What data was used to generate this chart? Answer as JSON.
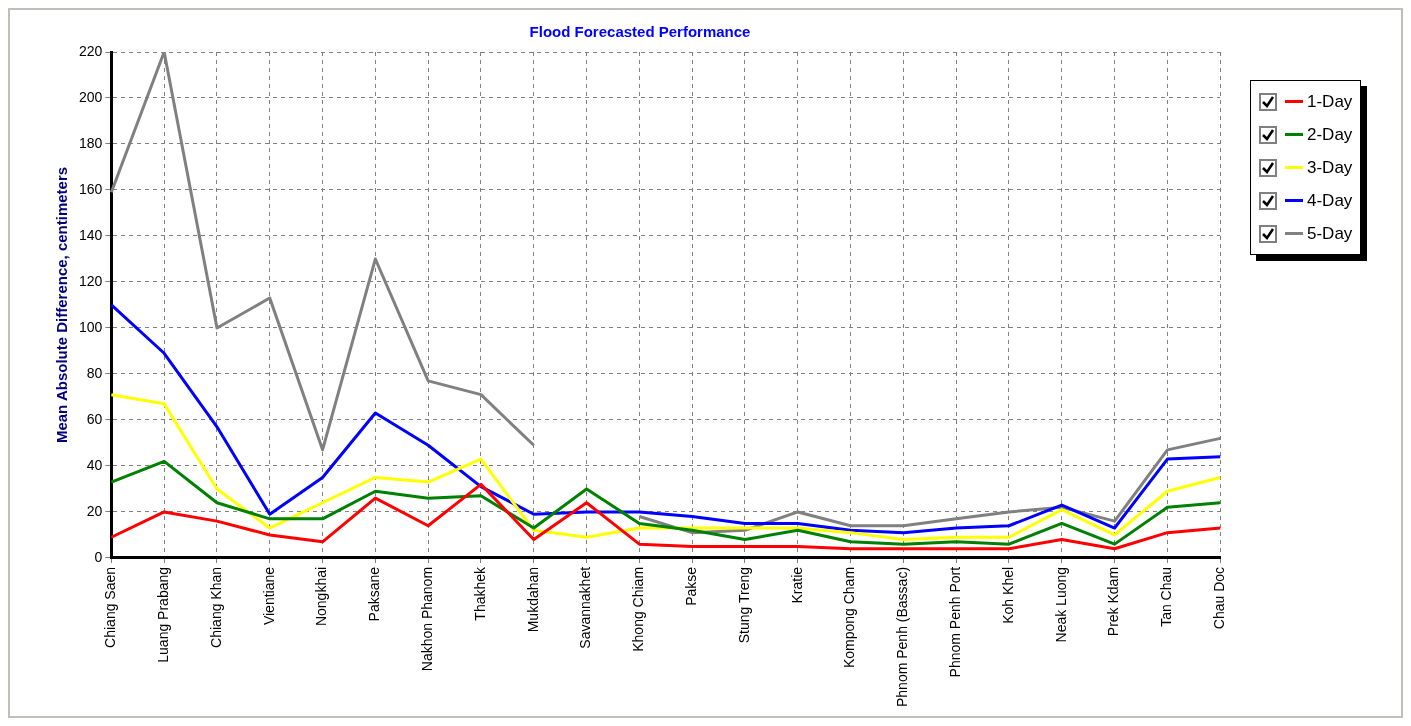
{
  "chart_data": {
    "type": "line",
    "title": "Flood Forecasted Performance",
    "ylabel": "Mean Absolute Difference, centimeters",
    "categories": [
      "Chiang Saen",
      "Luang Prabang",
      "Chiang Khan",
      "Vientiane",
      "Nongkhai",
      "Paksane",
      "Nakhon Phanom",
      "Thakhek",
      "Mukdahan",
      "Savannakhet",
      "Khong Chiam",
      "Pakse",
      "Stung Treng",
      "Kratie",
      "Kompong Cham",
      "Phnom Penh (Bassac)",
      "Phnom Penh Port",
      "Koh Khel",
      "Neak Luong",
      "Prek Kdam",
      "Tan Chau",
      "Chau Doc"
    ],
    "series": [
      {
        "name": "1-Day",
        "color": "#ff0000",
        "values": [
          9,
          20,
          16,
          10,
          7,
          26,
          14,
          32,
          8,
          24,
          6,
          5,
          5,
          5,
          4,
          4,
          4,
          4,
          8,
          4,
          11,
          13
        ]
      },
      {
        "name": "2-Day",
        "color": "#008000",
        "values": [
          33,
          42,
          24,
          17,
          17,
          29,
          26,
          27,
          13,
          30,
          15,
          12,
          8,
          12,
          7,
          6,
          7,
          6,
          15,
          6,
          22,
          24
        ]
      },
      {
        "name": "3-Day",
        "color": "#ffff00",
        "values": [
          71,
          67,
          30,
          13,
          24,
          35,
          33,
          43,
          12,
          9,
          13,
          13,
          13,
          13,
          11,
          8,
          9,
          9,
          21,
          10,
          29,
          35
        ]
      },
      {
        "name": "4-Day",
        "color": "#0000ff",
        "values": [
          110,
          89,
          57,
          19,
          35,
          63,
          49,
          31,
          19,
          20,
          20,
          18,
          15,
          15,
          12,
          11,
          13,
          14,
          23,
          13,
          43,
          44
        ]
      },
      {
        "name": "5-Day",
        "color": "#808080",
        "values": [
          159,
          220,
          100,
          113,
          47,
          130,
          77,
          71,
          49,
          null,
          18,
          11,
          12,
          20,
          14,
          14,
          17,
          20,
          22,
          16,
          47,
          52
        ]
      }
    ],
    "ylim": [
      0,
      220
    ],
    "yticks": [
      0,
      20,
      40,
      60,
      80,
      100,
      120,
      140,
      160,
      180,
      200,
      220
    ],
    "grid": true,
    "legend": "top right",
    "marker": "none",
    "line_style": "solid"
  }
}
